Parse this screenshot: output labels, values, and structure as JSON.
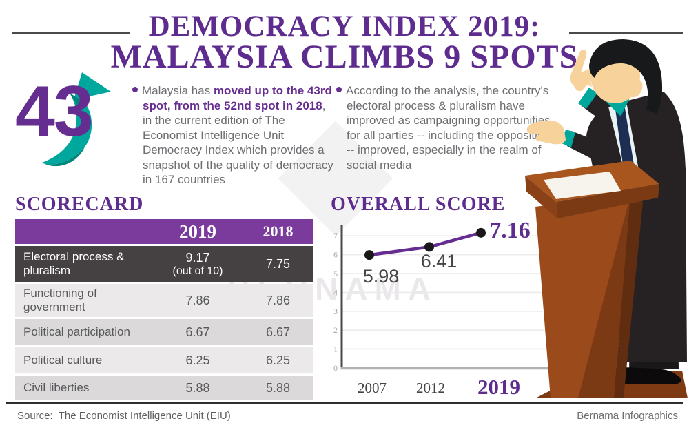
{
  "title": {
    "line1": "DEMOCRACY INDEX 2019:",
    "line2": "MALAYSIA CLIMBS 9 SPOTS"
  },
  "rank": {
    "value": "43"
  },
  "bullets": [
    {
      "pre": "Malaysia has ",
      "highlight": "moved up to the 43rd spot, from the 52nd spot in 2018",
      "post": ", in the current edition of The Economist Intelligence Unit Democracy Index which provides a snapshot of the quality of democracy in 167 countries"
    },
    {
      "text": "According to the analysis, the country's electoral process & pluralism have improved as campaigning opportunities for all parties -- including the opposition -- improved, especially in the realm of social media"
    }
  ],
  "scorecard": {
    "heading": "SCORECARD",
    "columns": [
      "2019",
      "2018"
    ],
    "rows": [
      {
        "label": "Electoral process & pluralism",
        "v2019": "9.17",
        "note": "(out of 10)",
        "v2018": "7.75"
      },
      {
        "label": "Functioning of government",
        "v2019": "7.86",
        "v2018": "7.86"
      },
      {
        "label": "Political participation",
        "v2019": "6.67",
        "v2018": "6.67"
      },
      {
        "label": "Political culture",
        "v2019": "6.25",
        "v2018": "6.25"
      },
      {
        "label": "Civil liberties",
        "v2019": "5.88",
        "v2018": "5.88"
      }
    ]
  },
  "overall": {
    "heading": "OVERALL SCORE"
  },
  "chart_data": {
    "type": "line",
    "title": "OVERALL SCORE",
    "x": [
      "2007",
      "2012",
      "2019"
    ],
    "values": [
      5.98,
      6.41,
      7.16
    ],
    "highlight_x": "2019",
    "highlight_value": 7.16,
    "ylim": [
      0,
      7
    ],
    "yticks": [
      0,
      1,
      2,
      3,
      4,
      5,
      6,
      7
    ],
    "grid": true,
    "legend": false,
    "line_color": "#662d91",
    "point_color": "#1a1718"
  },
  "watermark": {
    "text": "BERNAMA"
  },
  "footer": {
    "source_label": "Source:",
    "source_text": "The Economist Intelligence Unit (EIU)",
    "credit": "Bernama Infographics"
  },
  "icons": {
    "up_arrow": "up-arrow-icon",
    "speaker": "speaker-podium-illustration"
  },
  "colors": {
    "title_purple": "#5e2c8f",
    "accent_purple": "#662d91",
    "header_purple": "#7a3b9c",
    "teal": "#00a79d",
    "teal_dark": "#00857a",
    "charcoal_row": "#454142",
    "row_light": "#ebe9ea",
    "row_mid": "#dcd9da",
    "text_gray": "#6d6e71",
    "podium_brown": "#9a4a1b",
    "suit_black": "#262223",
    "skin": "#f8d29b"
  }
}
